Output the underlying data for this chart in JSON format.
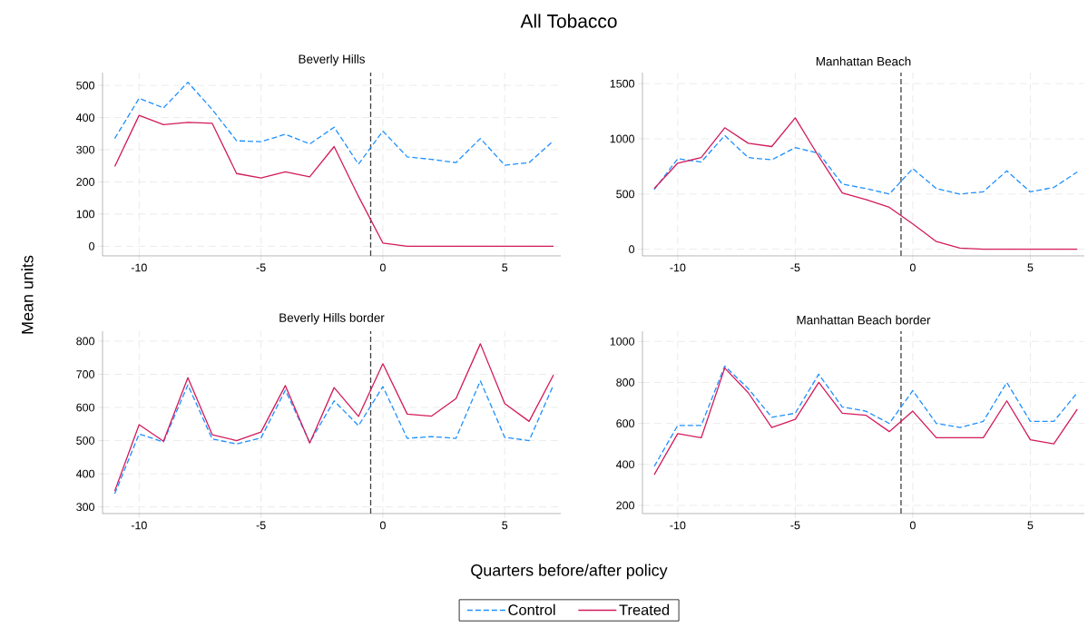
{
  "chart_data": [
    {
      "type": "line",
      "title": "Beverly Hills",
      "ylabel": "Mean units",
      "annotations": [
        "All Tobacco"
      ],
      "x": [
        -11,
        -10,
        -9,
        -8,
        -7,
        -6,
        -5,
        -4,
        -3,
        -2,
        -1,
        0,
        1,
        2,
        3,
        4,
        5,
        6,
        7
      ],
      "xlim": [
        -11.5,
        7.3
      ],
      "xticks": [
        -10,
        -5,
        0,
        5
      ],
      "ylim": [
        -30,
        540
      ],
      "yticks": [
        0,
        100,
        200,
        300,
        400,
        500
      ],
      "grid": true,
      "series": [
        {
          "color": "#1e90ff",
          "line_style": "dashed",
          "values": [
            335,
            460,
            430,
            510,
            425,
            328,
            325,
            348,
            318,
            370,
            255,
            358,
            278,
            270,
            260,
            335,
            252,
            260,
            328
          ]
        },
        {
          "color": "#d21a5c",
          "line_style": "solid",
          "values": [
            248,
            407,
            378,
            385,
            382,
            226,
            212,
            231,
            216,
            310,
            155,
            10,
            0,
            0,
            0,
            0,
            0,
            0,
            0
          ]
        }
      ],
      "ref_lines": [
        {
          "axis": "x",
          "value": -0.5,
          "color": "#404040",
          "line_style": "dashed"
        }
      ]
    },
    {
      "type": "line",
      "title": "Manhattan Beach",
      "x": [
        -11,
        -10,
        -9,
        -8,
        -7,
        -6,
        -5,
        -4,
        -3,
        -2,
        -1,
        0,
        1,
        2,
        3,
        4,
        5,
        6,
        7
      ],
      "xlim": [
        -11.5,
        7.3
      ],
      "xticks": [
        -10,
        -5,
        0,
        5
      ],
      "ylim": [
        -60,
        1600
      ],
      "yticks": [
        0,
        500,
        1000,
        1500
      ],
      "grid": true,
      "series": [
        {
          "color": "#1e90ff",
          "line_style": "dashed",
          "values": [
            540,
            820,
            790,
            1030,
            830,
            810,
            920,
            870,
            590,
            550,
            500,
            730,
            550,
            500,
            520,
            710,
            520,
            560,
            700
          ]
        },
        {
          "color": "#d21a5c",
          "line_style": "solid",
          "values": [
            550,
            780,
            830,
            1100,
            960,
            930,
            1190,
            840,
            510,
            450,
            380,
            230,
            70,
            10,
            0,
            0,
            0,
            0,
            0
          ]
        }
      ],
      "ref_lines": [
        {
          "axis": "x",
          "value": -0.5,
          "color": "#404040",
          "line_style": "dashed"
        }
      ]
    },
    {
      "type": "line",
      "title": "Beverly Hills border",
      "xlabel": "Quarters before/after policy",
      "legend": "bottom",
      "x": [
        -11,
        -10,
        -9,
        -8,
        -7,
        -6,
        -5,
        -4,
        -3,
        -2,
        -1,
        0,
        1,
        2,
        3,
        4,
        5,
        6,
        7
      ],
      "xlim": [
        -11.5,
        7.3
      ],
      "xticks": [
        -10,
        -5,
        0,
        5
      ],
      "ylim": [
        280,
        830
      ],
      "yticks": [
        300,
        400,
        500,
        600,
        700,
        800
      ],
      "grid": true,
      "series": [
        {
          "name": "Control",
          "color": "#1e90ff",
          "line_style": "dashed",
          "values": [
            340,
            520,
            496,
            668,
            505,
            490,
            508,
            652,
            495,
            620,
            545,
            663,
            507,
            512,
            507,
            680,
            510,
            500,
            668
          ]
        },
        {
          "name": "Treated",
          "color": "#d21a5c",
          "line_style": "solid",
          "values": [
            348,
            548,
            498,
            690,
            518,
            500,
            526,
            666,
            493,
            660,
            573,
            732,
            580,
            574,
            627,
            792,
            612,
            558,
            698
          ]
        }
      ],
      "ref_lines": [
        {
          "axis": "x",
          "value": -0.5,
          "color": "#404040",
          "line_style": "dashed"
        }
      ]
    },
    {
      "type": "line",
      "title": "Manhattan Beach border",
      "x": [
        -11,
        -10,
        -9,
        -8,
        -7,
        -6,
        -5,
        -4,
        -3,
        -2,
        -1,
        0,
        1,
        2,
        3,
        4,
        5,
        6,
        7
      ],
      "xlim": [
        -11.5,
        7.3
      ],
      "xticks": [
        -10,
        -5,
        0,
        5
      ],
      "ylim": [
        160,
        1050
      ],
      "yticks": [
        200,
        400,
        600,
        800,
        1000
      ],
      "grid": true,
      "series": [
        {
          "color": "#1e90ff",
          "line_style": "dashed",
          "values": [
            390,
            590,
            590,
            880,
            770,
            630,
            650,
            840,
            680,
            660,
            600,
            760,
            600,
            580,
            610,
            800,
            610,
            610,
            750
          ]
        },
        {
          "color": "#d21a5c",
          "line_style": "solid",
          "values": [
            350,
            550,
            530,
            870,
            750,
            580,
            620,
            800,
            650,
            640,
            560,
            660,
            530,
            530,
            530,
            710,
            520,
            500,
            670
          ]
        }
      ],
      "ref_lines": [
        {
          "axis": "x",
          "value": -0.5,
          "color": "#404040",
          "line_style": "dashed"
        }
      ]
    }
  ]
}
